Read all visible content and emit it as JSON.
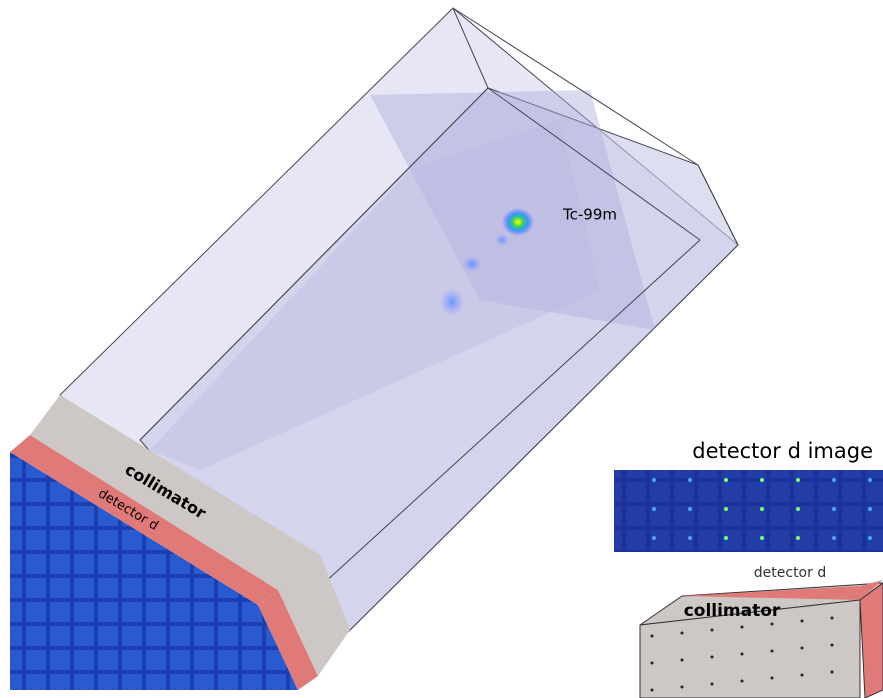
{
  "scene": {
    "source": "Tc-99m",
    "collimator": "collimator",
    "detector": "detector d"
  },
  "inset": {
    "title": "detector d image",
    "detector": "detector d",
    "collimator": "collimator"
  }
}
